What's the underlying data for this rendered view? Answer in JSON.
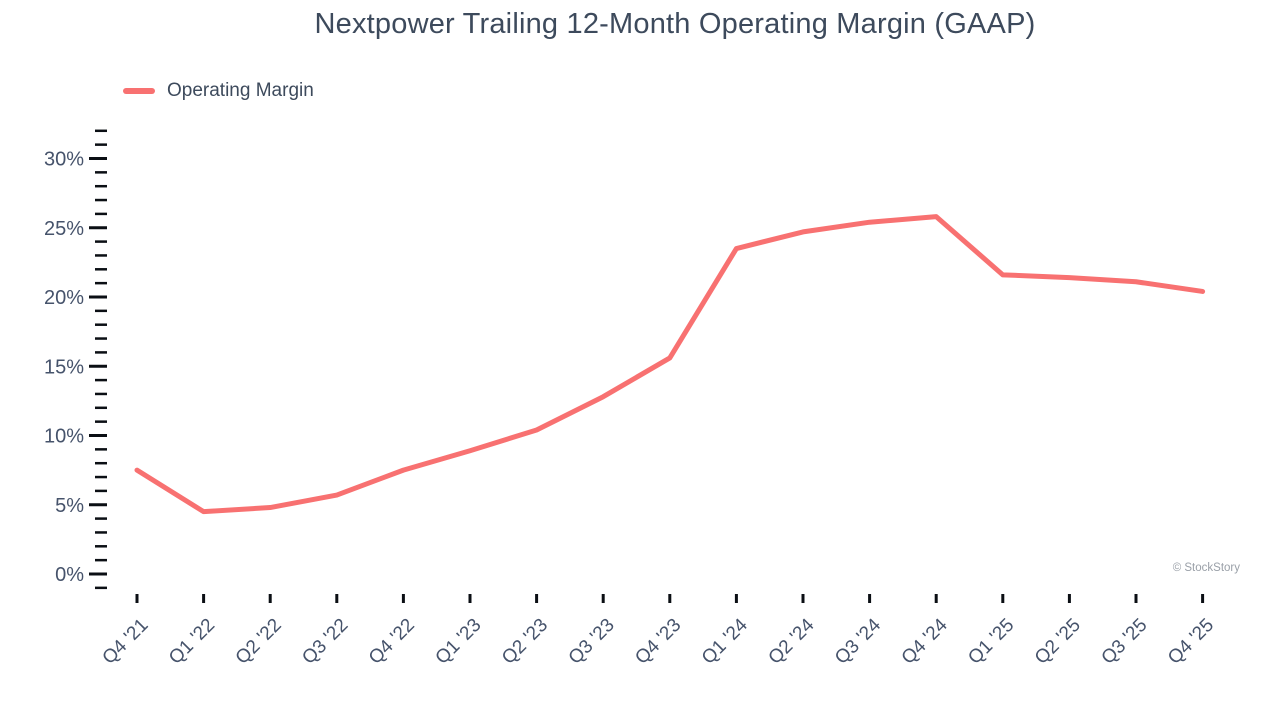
{
  "title": "Nextpower Trailing 12-Month Operating Margin (GAAP)",
  "legend": [
    {
      "label": "Operating Margin",
      "color": "#f87171"
    }
  ],
  "watermark": "© StockStory",
  "chart_data": {
    "type": "line",
    "title": "Nextpower Trailing 12-Month Operating Margin (GAAP)",
    "categories": [
      "Q4 '21",
      "Q1 '22",
      "Q2 '22",
      "Q3 '22",
      "Q4 '22",
      "Q1 '23",
      "Q2 '23",
      "Q3 '23",
      "Q4 '23",
      "Q1 '24",
      "Q2 '24",
      "Q3 '24",
      "Q4 '24",
      "Q1 '25",
      "Q2 '25",
      "Q3 '25",
      "Q4 '25"
    ],
    "series": [
      {
        "name": "Operating Margin",
        "color": "#f87171",
        "values": [
          7.5,
          4.5,
          4.8,
          5.7,
          7.5,
          8.9,
          10.4,
          12.8,
          15.6,
          23.5,
          24.7,
          25.4,
          25.8,
          21.6,
          21.4,
          21.1,
          20.4
        ]
      }
    ],
    "xlabel": "",
    "ylabel": "",
    "ylim": [
      -1,
      32
    ],
    "y_major_ticks": [
      0,
      5,
      10,
      15,
      20,
      25,
      30
    ],
    "y_minor_step": 1,
    "y_tick_suffix": "%",
    "grid": false,
    "legend_position": "top-left",
    "colors": {
      "line": "#f87171",
      "axis_text": "#46536b",
      "tick": "#0b0f14",
      "watermark": "#9aa0a8",
      "title_text": "#3d4a5c"
    }
  }
}
